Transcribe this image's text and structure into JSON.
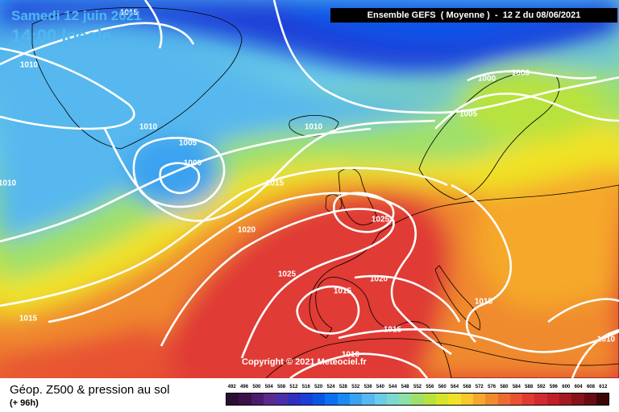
{
  "header": {
    "date": "Samedi 12 juin 2021",
    "local_time": "14:00 locale",
    "model_run": "Ensemble GEFS  ( Moyenne )  -  12 Z du 08/06/2021"
  },
  "copyright": "Copyright © 2021 Meteociel.fr",
  "legend": {
    "title": "Géop. Z500 & pression au sol",
    "lead_time": "(+ 96h)",
    "scale_values": [
      "492",
      "496",
      "500",
      "504",
      "508",
      "512",
      "516",
      "520",
      "524",
      "528",
      "532",
      "536",
      "540",
      "544",
      "548",
      "552",
      "556",
      "560",
      "564",
      "568",
      "572",
      "576",
      "580",
      "584",
      "588",
      "592",
      "596",
      "600",
      "604",
      "608",
      "612"
    ],
    "scale_colors": [
      "#2b0f33",
      "#3c1147",
      "#4e1a6b",
      "#5a2a8c",
      "#4a2fa8",
      "#2f2fc0",
      "#1a3fd8",
      "#0a55e8",
      "#0a70f0",
      "#1a8af2",
      "#3aa2f0",
      "#56b8ee",
      "#6ccbe6",
      "#7dd9cf",
      "#8de0a8",
      "#9ee06a",
      "#b8e23c",
      "#d6e42a",
      "#f0e226",
      "#f6c82a",
      "#f5a82c",
      "#f08a2e",
      "#ec6c30",
      "#e85232",
      "#e03a34",
      "#d22a2e",
      "#c01e28",
      "#a41822",
      "#86121a",
      "#660c12",
      "#3a0608"
    ]
  },
  "isobars": [
    {
      "text": "1015"
    },
    {
      "text": "1010"
    },
    {
      "text": "1010"
    },
    {
      "text": "1005"
    },
    {
      "text": "1000"
    },
    {
      "text": "1010"
    },
    {
      "text": "1010"
    },
    {
      "text": "1015"
    },
    {
      "text": "1020"
    },
    {
      "text": "1025"
    },
    {
      "text": "1025"
    },
    {
      "text": "1015"
    },
    {
      "text": "1020"
    },
    {
      "text": "1015"
    },
    {
      "text": "1015"
    },
    {
      "text": "1010"
    },
    {
      "text": "1000"
    },
    {
      "text": "1000"
    },
    {
      "text": "1005"
    },
    {
      "text": "1015"
    },
    {
      "text": "1010"
    }
  ]
}
